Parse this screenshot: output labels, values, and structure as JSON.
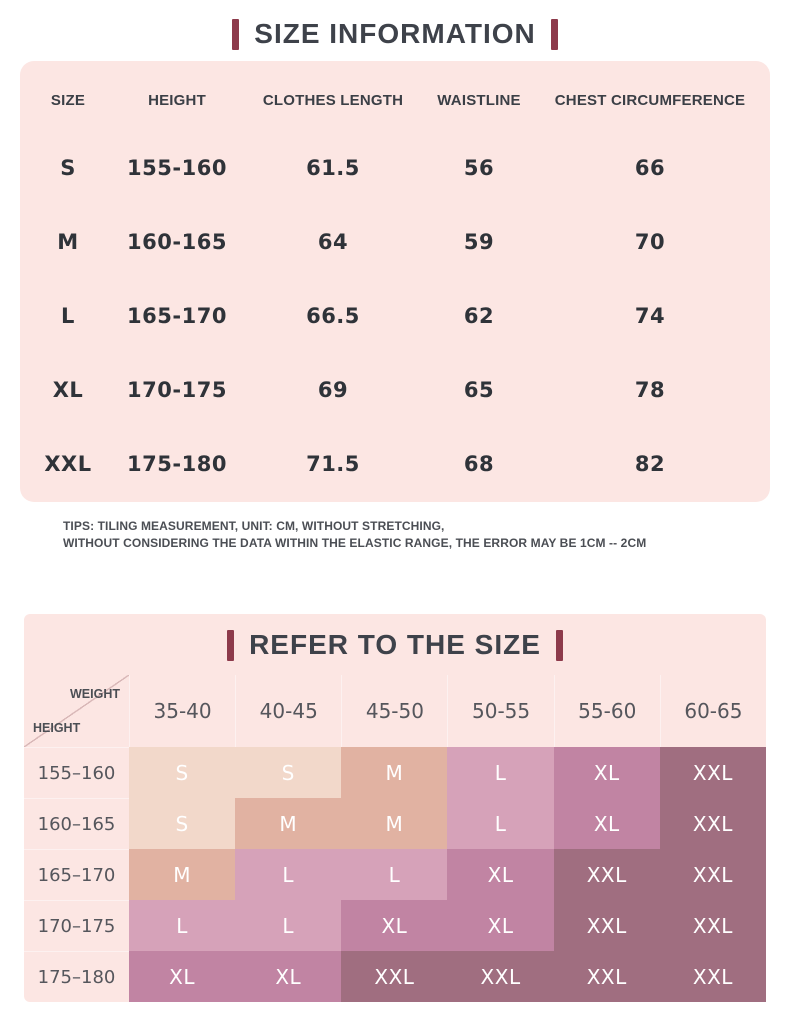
{
  "colors": {
    "accent_bar": "#8d3a4b",
    "panel_pink": "#fce6e3",
    "heading_text": "#3e424a",
    "cell_text": "#ffffff"
  },
  "size_colors": {
    "S": "#f2d8ca",
    "M": "#e1b2a2",
    "L": "#d6a2b9",
    "XL": "#c184a3",
    "XXL": "#a06e80"
  },
  "tips": {
    "line1": "TIPS: TILING MEASUREMENT, UNIT: CM, WITHOUT STRETCHING,",
    "line2": "WITHOUT CONSIDERING THE DATA WITHIN THE ELASTIC RANGE, THE ERROR MAY BE 1CM -- 2CM"
  },
  "chart_data": [
    {
      "type": "table",
      "title": "SIZE INFORMATION",
      "unit": "cm",
      "columns": [
        "SIZE",
        "HEIGHT",
        "CLOTHES LENGTH",
        "WAISTLINE",
        "CHEST CIRCUMFERENCE"
      ],
      "rows": [
        [
          "S",
          "155-160",
          "61.5",
          "56",
          "66"
        ],
        [
          "M",
          "160-165",
          "64",
          "59",
          "70"
        ],
        [
          "L",
          "165-170",
          "66.5",
          "62",
          "74"
        ],
        [
          "XL",
          "170-175",
          "69",
          "65",
          "78"
        ],
        [
          "XXL",
          "175-180",
          "71.5",
          "68",
          "82"
        ]
      ]
    },
    {
      "type": "table",
      "title": "REFER TO THE SIZE",
      "col_axis": "WEIGHT",
      "row_axis": "HEIGHT",
      "columns": [
        "35-40",
        "40-45",
        "45-50",
        "50-55",
        "55-60",
        "60-65"
      ],
      "row_labels": [
        "155–160",
        "160–165",
        "165–170",
        "170–175",
        "175–180"
      ],
      "cells": [
        [
          "S",
          "S",
          "M",
          "L",
          "XL",
          "XXL"
        ],
        [
          "S",
          "M",
          "M",
          "L",
          "XL",
          "XXL"
        ],
        [
          "M",
          "L",
          "L",
          "XL",
          "XXL",
          "XXL"
        ],
        [
          "L",
          "L",
          "XL",
          "XL",
          "XXL",
          "XXL"
        ],
        [
          "XL",
          "XL",
          "XXL",
          "XXL",
          "XXL",
          "XXL"
        ]
      ]
    }
  ]
}
